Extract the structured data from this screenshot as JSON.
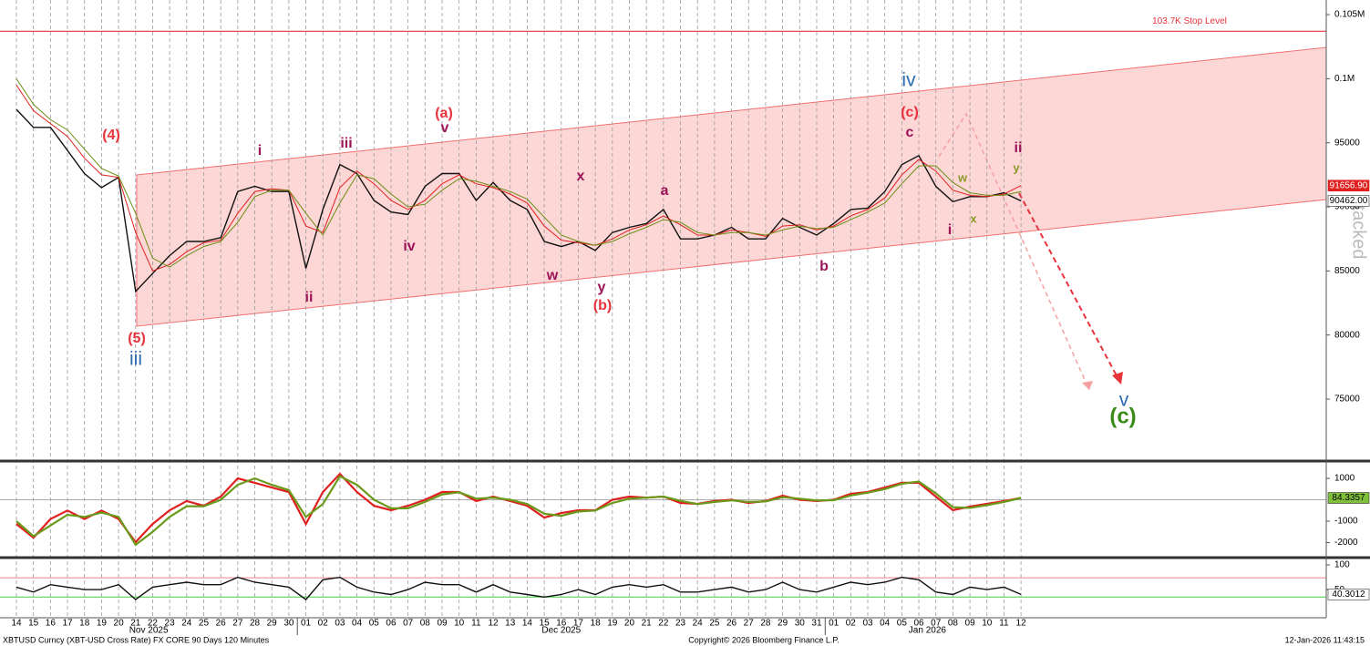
{
  "chart_data": [
    {
      "type": "line",
      "categories": [
        "14",
        "15",
        "16",
        "17",
        "18",
        "19",
        "20",
        "21",
        "22",
        "23",
        "24",
        "25",
        "26",
        "27",
        "28",
        "29",
        "30",
        "01",
        "02",
        "03",
        "04",
        "05",
        "06",
        "07",
        "08",
        "09",
        "10",
        "11",
        "12",
        "13",
        "14",
        "15",
        "16",
        "17",
        "18",
        "19",
        "20",
        "21",
        "22",
        "23",
        "24",
        "25",
        "26",
        "27",
        "28",
        "29",
        "30",
        "31",
        "01",
        "02",
        "03",
        "04",
        "05",
        "06",
        "07",
        "08",
        "09",
        "10",
        "11",
        "12"
      ],
      "months": [
        "Nov 2025",
        "Dec 2025",
        "Jan 2026"
      ],
      "ylim": [
        70240,
        106140
      ],
      "yticks": [
        75000,
        80000,
        85000,
        90000,
        95000,
        {
          "value": 100000,
          "label": "0.1M"
        },
        {
          "value": 105000,
          "label": "0.105M"
        }
      ],
      "grid": true,
      "stop_level": {
        "value": 103700,
        "label": "103.7K Stop Level",
        "color": "#e8323c"
      },
      "series": [
        {
          "name": "Price",
          "color": "#111111",
          "last_label": "90462.00",
          "values": [
            97600,
            96200,
            96200,
            94400,
            92600,
            91500,
            92300,
            83400,
            84800,
            86200,
            87300,
            87300,
            87600,
            91200,
            91600,
            91200,
            91200,
            85200,
            89800,
            93300,
            92600,
            90500,
            89600,
            89400,
            91600,
            92600,
            92600,
            90500,
            91900,
            90500,
            89800,
            87300,
            86900,
            87300,
            86600,
            88000,
            88400,
            88700,
            89800,
            87500,
            87500,
            87800,
            88400,
            87500,
            87500,
            89100,
            88400,
            87800,
            88700,
            89800,
            89900,
            91200,
            93300,
            94000,
            91600,
            90400,
            90800,
            90800,
            91100,
            90462
          ]
        },
        {
          "name": "MA red",
          "color": "#e02020",
          "last_label": "91656.90",
          "values": [
            99500,
            97500,
            96500,
            95500,
            93800,
            92500,
            92300,
            88000,
            85000,
            85500,
            86500,
            87200,
            87400,
            89500,
            91200,
            91400,
            91300,
            88500,
            88000,
            91500,
            92800,
            91800,
            90500,
            89800,
            90500,
            91800,
            92500,
            91800,
            91500,
            91000,
            90300,
            88500,
            87400,
            87200,
            87000,
            87500,
            88200,
            88600,
            89300,
            88600,
            87800,
            87800,
            88200,
            88000,
            87700,
            88500,
            88600,
            88200,
            88500,
            89300,
            89800,
            90700,
            92500,
            93700,
            92800,
            91300,
            90900,
            90800,
            91000,
            91656.9
          ]
        },
        {
          "name": "MA green",
          "color": "#6a8e12",
          "values": [
            100000,
            98000,
            96800,
            96000,
            94500,
            93000,
            92400,
            89500,
            86000,
            85300,
            86200,
            86900,
            87300,
            88800,
            90800,
            91300,
            91300,
            89500,
            87800,
            90300,
            92500,
            92200,
            91000,
            90000,
            90200,
            91300,
            92200,
            92000,
            91600,
            91200,
            90600,
            89200,
            87800,
            87300,
            87000,
            87300,
            87900,
            88400,
            89000,
            88800,
            88000,
            87800,
            88000,
            88000,
            87800,
            88200,
            88500,
            88300,
            88400,
            89000,
            89600,
            90300,
            91800,
            93200,
            93200,
            91900,
            91100,
            90900,
            90900,
            91200
          ]
        }
      ],
      "annotations": [
        {
          "text": "(4)",
          "color": "#e8323c"
        },
        {
          "text": "(5)",
          "color": "#e8323c"
        },
        {
          "text": "iii",
          "color": "#2a6bb0"
        },
        {
          "text": "i",
          "color": "#9c1458"
        },
        {
          "text": "iii",
          "color": "#9c1458"
        },
        {
          "text": "ii",
          "color": "#9c1458"
        },
        {
          "text": "iv",
          "color": "#9c1458"
        },
        {
          "text": "(a)",
          "color": "#e8323c"
        },
        {
          "text": "v",
          "color": "#9c1458"
        },
        {
          "text": "x",
          "color": "#9c1458"
        },
        {
          "text": "w",
          "color": "#9c1458"
        },
        {
          "text": "y",
          "color": "#9c1458"
        },
        {
          "text": "(b)",
          "color": "#e8323c"
        },
        {
          "text": "a",
          "color": "#9c1458"
        },
        {
          "text": "b",
          "color": "#9c1458"
        },
        {
          "text": "iv",
          "color": "#2a6bb0"
        },
        {
          "text": "(c)",
          "color": "#e8323c"
        },
        {
          "text": "c",
          "color": "#9c1458"
        },
        {
          "text": "ii",
          "color": "#9c1458"
        },
        {
          "text": "w",
          "color": "#8a9a2a"
        },
        {
          "text": "y",
          "color": "#8a9a2a"
        },
        {
          "text": "x",
          "color": "#8a9a2a"
        },
        {
          "text": "i",
          "color": "#9c1458"
        },
        {
          "text": "v",
          "color": "#2a6bb0"
        },
        {
          "text": "(c)",
          "color": "#3a8a1a"
        }
      ],
      "watermark": "tacked",
      "footer": {
        "left": "XBTUSD Curncy (XBT-USD Cross Rate) FX CORE 90 Days 120 Minutes",
        "center": "Copyright© 2026 Bloomberg Finance L.P.",
        "right": "12-Jan-2026 11:43:15"
      }
    },
    {
      "type": "line",
      "ylim": [
        -2617,
        1766
      ],
      "yticks": [
        1000,
        -1000,
        -2000
      ],
      "series": [
        {
          "name": "Signal red",
          "color": "#e02020",
          "values": [
            -1130,
            -1770,
            -900,
            -500,
            -900,
            -500,
            -900,
            -1980,
            -1130,
            -490,
            -60,
            -280,
            150,
            1000,
            790,
            570,
            360,
            -1130,
            360,
            1210,
            360,
            -280,
            -490,
            -280,
            0,
            360,
            360,
            -60,
            150,
            -60,
            -280,
            -830,
            -620,
            -490,
            -490,
            0,
            150,
            100,
            150,
            -150,
            -190,
            -60,
            0,
            -150,
            -60,
            190,
            0,
            -60,
            0,
            280,
            360,
            570,
            790,
            790,
            150,
            -490,
            -320,
            -190,
            -60,
            90
          ]
        },
        {
          "name": "Signal green",
          "color": "#6a9a1a",
          "values": [
            -1000,
            -1700,
            -1200,
            -700,
            -800,
            -600,
            -800,
            -2100,
            -1500,
            -800,
            -300,
            -300,
            0,
            700,
            1000,
            700,
            450,
            -800,
            -200,
            1100,
            700,
            0,
            -400,
            -400,
            -100,
            250,
            350,
            50,
            100,
            0,
            -200,
            -650,
            -750,
            -550,
            -500,
            -150,
            50,
            100,
            150,
            -50,
            -200,
            -100,
            -30,
            -100,
            -80,
            120,
            50,
            -30,
            -20,
            200,
            330,
            500,
            750,
            850,
            300,
            -350,
            -380,
            -250,
            -100,
            84.3357
          ]
        }
      ]
    },
    {
      "type": "line",
      "ylim": [
        -7,
        113
      ],
      "yticks": [
        100,
        50
      ],
      "levels": [
        {
          "value": 74,
          "color": "#f08080"
        },
        {
          "value": 35,
          "color": "#40d040"
        }
      ],
      "series": [
        {
          "name": "RSI",
          "color": "#111111",
          "values": [
            55,
            45,
            60,
            55,
            50,
            50,
            60,
            30,
            55,
            60,
            65,
            60,
            60,
            75,
            65,
            60,
            55,
            30,
            70,
            75,
            55,
            45,
            40,
            50,
            65,
            60,
            60,
            45,
            60,
            45,
            40,
            35,
            40,
            50,
            40,
            55,
            60,
            55,
            60,
            45,
            45,
            50,
            55,
            45,
            50,
            65,
            50,
            45,
            55,
            65,
            60,
            65,
            75,
            70,
            45,
            40,
            55,
            50,
            55,
            40.3012
          ]
        }
      ]
    }
  ]
}
